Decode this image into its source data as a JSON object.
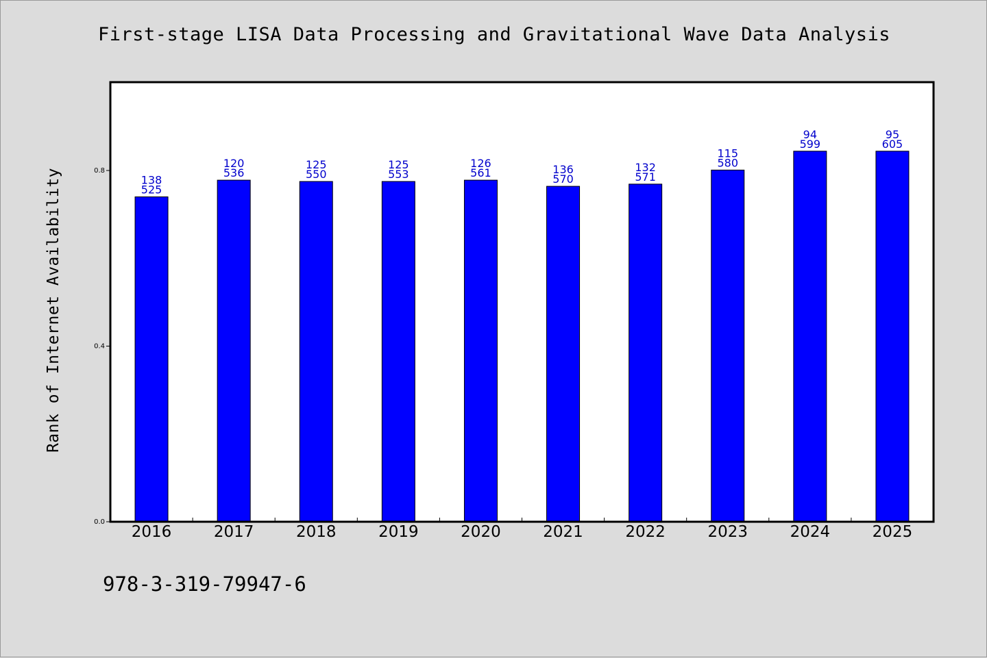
{
  "title": "First-stage LISA Data Processing and Gravitational Wave Data Analysis",
  "footer_text": "978-3-319-79947-6",
  "colors": {
    "background": "#dcdcdc",
    "plot_background": "#ffffff",
    "bar": "#0000ff",
    "bar_outline": "#000000",
    "data_label": "#0000cc"
  },
  "chart_data": {
    "type": "bar",
    "title": "First-stage LISA Data Processing and Gravitational Wave Data Analysis",
    "xlabel": "",
    "ylabel": "Rank of Internet Availability",
    "categories": [
      "2016",
      "2017",
      "2018",
      "2019",
      "2020",
      "2021",
      "2022",
      "2023",
      "2024",
      "2025"
    ],
    "values": [
      0.74,
      0.778,
      0.775,
      0.775,
      0.778,
      0.764,
      0.769,
      0.801,
      0.844,
      0.844
    ],
    "bar_labels": [
      [
        "138",
        "525"
      ],
      [
        "120",
        "536"
      ],
      [
        "125",
        "550"
      ],
      [
        "125",
        "553"
      ],
      [
        "126",
        "561"
      ],
      [
        "136",
        "570"
      ],
      [
        "132",
        "571"
      ],
      [
        "115",
        "580"
      ],
      [
        "94",
        "599"
      ],
      [
        "95",
        "605"
      ]
    ],
    "ylim": [
      0,
      1.0
    ],
    "yticks": [
      0.0,
      0.4,
      0.8
    ],
    "ytick_labels": [
      "0.0",
      "0.4",
      "0.8"
    ],
    "grid": false,
    "legend": "none"
  }
}
